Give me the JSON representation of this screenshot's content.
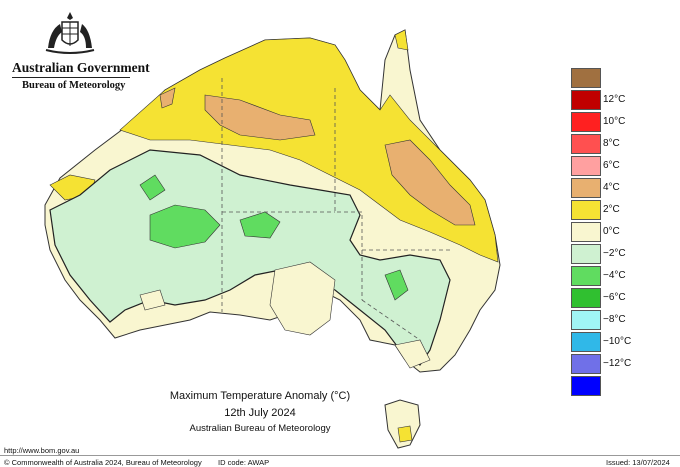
{
  "header": {
    "government": "Australian Government",
    "agency": "Bureau of Meteorology",
    "crest_icon": "coat-of-arms-icon"
  },
  "map": {
    "title": "Maximum Temperature Anomaly (°C)",
    "date": "12th July 2024",
    "source": "Australian Bureau of Meteorology"
  },
  "legend": {
    "items": [
      {
        "label": "",
        "color": "#A07040"
      },
      {
        "label": "12°C",
        "color": "#C00000"
      },
      {
        "label": "10°C",
        "color": "#FF2020"
      },
      {
        "label": "8°C",
        "color": "#FF5050"
      },
      {
        "label": "6°C",
        "color": "#FFA0A0"
      },
      {
        "label": "4°C",
        "color": "#E8B070"
      },
      {
        "label": "2°C",
        "color": "#F5E233"
      },
      {
        "label": "0°C",
        "color": "#F9F6D0"
      },
      {
        "label": "−2°C",
        "color": "#CFF1D1"
      },
      {
        "label": "−4°C",
        "color": "#60DC60"
      },
      {
        "label": "−6°C",
        "color": "#30C030"
      },
      {
        "label": "−8°C",
        "color": "#A0F5F5"
      },
      {
        "label": "−10°C",
        "color": "#30B8E8"
      },
      {
        "label": "−12°C",
        "color": "#7070E8"
      },
      {
        "label": "",
        "color": "#0000FF"
      }
    ]
  },
  "footer": {
    "url": "http://www.bom.gov.au",
    "copyright": "© Commonwealth of Australia 2024, Bureau of Meteorology",
    "id_code": "ID code: AWAP",
    "issued": "Issued: 13/07/2024"
  }
}
